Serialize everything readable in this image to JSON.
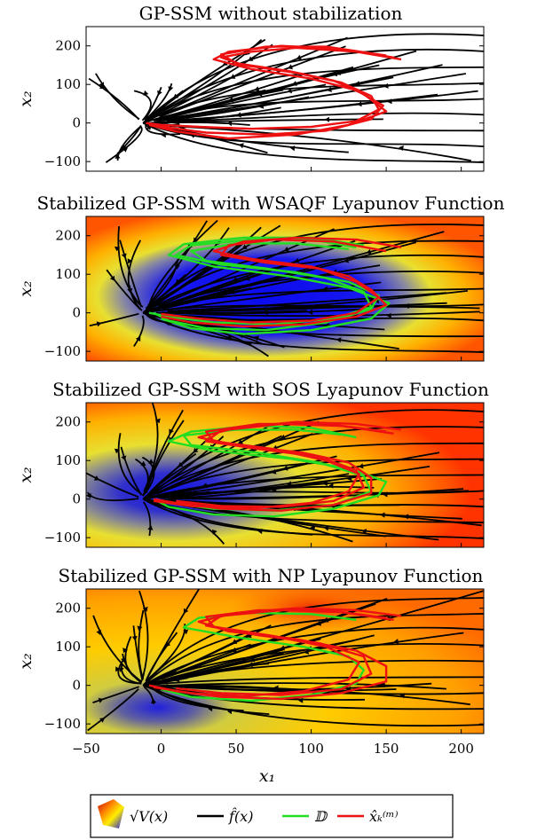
{
  "chart_data": [
    {
      "type": "line",
      "title": "GP-SSM without stabilization",
      "xlabel": "",
      "ylabel": "x₂",
      "xlim": [
        -50,
        215
      ],
      "ylim": [
        -125,
        250
      ],
      "yticks": [
        "200",
        "100",
        "0",
        "−100"
      ],
      "xticks": [],
      "background": "none",
      "show_D": false,
      "series": [
        {
          "name": "red",
          "points": [
            [
              160,
              165
            ],
            [
              130,
              185
            ],
            [
              90,
              195
            ],
            [
              60,
              185
            ],
            [
              40,
              170
            ],
            [
              55,
              150
            ],
            [
              90,
              130
            ],
            [
              120,
              105
            ],
            [
              140,
              70
            ],
            [
              145,
              35
            ],
            [
              130,
              5
            ],
            [
              100,
              -10
            ],
            [
              60,
              -15
            ],
            [
              25,
              -10
            ],
            [
              0,
              -5
            ],
            [
              -10,
              0
            ]
          ]
        },
        {
          "name": "red",
          "points": [
            [
              155,
              170
            ],
            [
              120,
              192
            ],
            [
              80,
              200
            ],
            [
              45,
              185
            ],
            [
              35,
              165
            ],
            [
              60,
              140
            ],
            [
              100,
              115
            ],
            [
              130,
              85
            ],
            [
              148,
              45
            ],
            [
              140,
              10
            ],
            [
              110,
              -20
            ],
            [
              70,
              -30
            ],
            [
              30,
              -25
            ],
            [
              5,
              -12
            ],
            [
              -10,
              0
            ]
          ]
        },
        {
          "name": "red",
          "points": [
            [
              150,
              175
            ],
            [
              110,
              198
            ],
            [
              70,
              198
            ],
            [
              40,
              178
            ],
            [
              50,
              155
            ],
            [
              85,
              135
            ],
            [
              115,
              110
            ],
            [
              135,
              75
            ],
            [
              150,
              30
            ],
            [
              125,
              -5
            ],
            [
              90,
              -30
            ],
            [
              45,
              -40
            ],
            [
              10,
              -22
            ],
            [
              -8,
              -5
            ]
          ]
        }
      ]
    },
    {
      "type": "line",
      "title": "Stabilized GP-SSM with WSAQF Lyapunov Function",
      "xlabel": "",
      "ylabel": "x₂",
      "xlim": [
        -50,
        215
      ],
      "ylim": [
        -125,
        250
      ],
      "yticks": [
        "200",
        "100",
        "0",
        "−100"
      ],
      "xticks": [],
      "background": "wsaqf",
      "show_D": true,
      "series": [
        {
          "name": "green",
          "points": [
            [
              130,
              170
            ],
            [
              100,
              190
            ],
            [
              60,
              190
            ],
            [
              20,
              175
            ],
            [
              10,
              150
            ],
            [
              40,
              125
            ],
            [
              90,
              105
            ],
            [
              125,
              80
            ],
            [
              145,
              45
            ],
            [
              140,
              10
            ],
            [
              110,
              -25
            ],
            [
              70,
              -45
            ],
            [
              30,
              -40
            ],
            [
              5,
              -20
            ],
            [
              -5,
              0
            ]
          ]
        },
        {
          "name": "green",
          "points": [
            [
              125,
              165
            ],
            [
              90,
              180
            ],
            [
              50,
              180
            ],
            [
              20,
              160
            ],
            [
              30,
              135
            ],
            [
              70,
              115
            ],
            [
              110,
              90
            ],
            [
              135,
              55
            ],
            [
              140,
              15
            ],
            [
              115,
              -15
            ],
            [
              75,
              -30
            ],
            [
              35,
              -25
            ],
            [
              5,
              -10
            ],
            [
              -8,
              0
            ]
          ]
        },
        {
          "name": "green",
          "points": [
            [
              135,
              175
            ],
            [
              100,
              195
            ],
            [
              55,
              195
            ],
            [
              15,
              178
            ],
            [
              5,
              150
            ],
            [
              35,
              120
            ],
            [
              85,
              95
            ],
            [
              125,
              65
            ],
            [
              152,
              25
            ],
            [
              140,
              -15
            ],
            [
              100,
              -45
            ],
            [
              55,
              -55
            ],
            [
              20,
              -40
            ],
            [
              0,
              -15
            ]
          ]
        },
        {
          "name": "red",
          "points": [
            [
              160,
              170
            ],
            [
              130,
              190
            ],
            [
              90,
              195
            ],
            [
              55,
              185
            ],
            [
              35,
              160
            ],
            [
              60,
              140
            ],
            [
              100,
              120
            ],
            [
              125,
              95
            ],
            [
              140,
              60
            ],
            [
              150,
              20
            ],
            [
              130,
              -10
            ],
            [
              95,
              -30
            ],
            [
              55,
              -35
            ],
            [
              20,
              -25
            ],
            [
              0,
              -10
            ]
          ]
        },
        {
          "name": "red",
          "points": [
            [
              150,
              160
            ],
            [
              115,
              185
            ],
            [
              75,
              190
            ],
            [
              45,
              175
            ],
            [
              40,
              150
            ],
            [
              70,
              130
            ],
            [
              105,
              115
            ],
            [
              130,
              80
            ],
            [
              145,
              40
            ],
            [
              130,
              0
            ],
            [
              100,
              -20
            ],
            [
              60,
              -25
            ],
            [
              25,
              -15
            ],
            [
              0,
              -3
            ]
          ]
        }
      ]
    },
    {
      "type": "line",
      "title": "Stabilized GP-SSM with SOS Lyapunov Function",
      "xlabel": "",
      "ylabel": "x₂",
      "xlim": [
        -50,
        215
      ],
      "ylim": [
        -125,
        250
      ],
      "yticks": [
        "200",
        "100",
        "0",
        "−100"
      ],
      "xticks": [],
      "background": "sos",
      "show_D": true,
      "series": [
        {
          "name": "green",
          "points": [
            [
              130,
              160
            ],
            [
              100,
              185
            ],
            [
              60,
              190
            ],
            [
              20,
              175
            ],
            [
              5,
              150
            ],
            [
              35,
              125
            ],
            [
              85,
              105
            ],
            [
              125,
              80
            ],
            [
              150,
              45
            ],
            [
              145,
              10
            ],
            [
              115,
              -25
            ],
            [
              75,
              -45
            ],
            [
              35,
              -40
            ],
            [
              5,
              -20
            ],
            [
              -5,
              0
            ]
          ]
        },
        {
          "name": "green",
          "points": [
            [
              125,
              165
            ],
            [
              90,
              180
            ],
            [
              50,
              180
            ],
            [
              15,
              165
            ],
            [
              20,
              140
            ],
            [
              65,
              120
            ],
            [
              105,
              95
            ],
            [
              135,
              60
            ],
            [
              140,
              20
            ],
            [
              115,
              -15
            ],
            [
              75,
              -30
            ],
            [
              35,
              -25
            ],
            [
              5,
              -10
            ]
          ]
        },
        {
          "name": "red",
          "points": [
            [
              160,
              180
            ],
            [
              130,
              195
            ],
            [
              90,
              200
            ],
            [
              50,
              185
            ],
            [
              25,
              160
            ],
            [
              50,
              140
            ],
            [
              95,
              120
            ],
            [
              125,
              95
            ],
            [
              140,
              55
            ],
            [
              140,
              15
            ],
            [
              115,
              -15
            ],
            [
              80,
              -30
            ],
            [
              40,
              -25
            ],
            [
              10,
              -10
            ],
            [
              -5,
              0
            ]
          ]
        },
        {
          "name": "red",
          "points": [
            [
              155,
              170
            ],
            [
              120,
              190
            ],
            [
              80,
              195
            ],
            [
              40,
              178
            ],
            [
              30,
              150
            ],
            [
              65,
              130
            ],
            [
              105,
              110
            ],
            [
              130,
              75
            ],
            [
              135,
              30
            ],
            [
              115,
              -5
            ],
            [
              80,
              -20
            ],
            [
              40,
              -18
            ],
            [
              10,
              -5
            ]
          ]
        },
        {
          "name": "red",
          "points": [
            [
              150,
              175
            ],
            [
              110,
              195
            ],
            [
              65,
              195
            ],
            [
              30,
              175
            ],
            [
              35,
              150
            ],
            [
              75,
              130
            ],
            [
              110,
              100
            ],
            [
              132,
              65
            ],
            [
              125,
              20
            ],
            [
              100,
              -10
            ],
            [
              60,
              -25
            ],
            [
              20,
              -18
            ],
            [
              -5,
              -5
            ]
          ]
        }
      ]
    },
    {
      "type": "line",
      "title": "Stabilized GP-SSM with NP Lyapunov Function",
      "xlabel": "x₁",
      "ylabel": "x₂",
      "xlim": [
        -50,
        215
      ],
      "ylim": [
        -125,
        250
      ],
      "yticks": [
        "200",
        "100",
        "0",
        "−100"
      ],
      "xticks": [
        "−50",
        "0",
        "50",
        "100",
        "150",
        "200"
      ],
      "background": "np",
      "show_D": true,
      "series": [
        {
          "name": "green",
          "points": [
            [
              130,
              170
            ],
            [
              100,
              185
            ],
            [
              60,
              188
            ],
            [
              25,
              175
            ],
            [
              15,
              150
            ],
            [
              50,
              125
            ],
            [
              95,
              100
            ],
            [
              125,
              75
            ],
            [
              135,
              40
            ],
            [
              130,
              5
            ],
            [
              100,
              -25
            ],
            [
              60,
              -40
            ],
            [
              20,
              -30
            ],
            [
              0,
              -10
            ]
          ]
        },
        {
          "name": "red",
          "points": [
            [
              160,
              180
            ],
            [
              130,
              195
            ],
            [
              90,
              200
            ],
            [
              50,
              188
            ],
            [
              25,
              165
            ],
            [
              45,
              140
            ],
            [
              90,
              120
            ],
            [
              130,
              90
            ],
            [
              150,
              50
            ],
            [
              150,
              10
            ],
            [
              120,
              -20
            ],
            [
              80,
              -35
            ],
            [
              40,
              -30
            ],
            [
              10,
              -15
            ],
            [
              -8,
              0
            ]
          ]
        },
        {
          "name": "red",
          "points": [
            [
              155,
              170
            ],
            [
              120,
              190
            ],
            [
              80,
              195
            ],
            [
              40,
              180
            ],
            [
              30,
              155
            ],
            [
              65,
              130
            ],
            [
              105,
              110
            ],
            [
              135,
              75
            ],
            [
              140,
              30
            ],
            [
              120,
              -10
            ],
            [
              80,
              -25
            ],
            [
              40,
              -20
            ],
            [
              10,
              -8
            ]
          ]
        },
        {
          "name": "red",
          "points": [
            [
              150,
              175
            ],
            [
              110,
              195
            ],
            [
              65,
              195
            ],
            [
              30,
              178
            ],
            [
              35,
              152
            ],
            [
              75,
              128
            ],
            [
              110,
              100
            ],
            [
              132,
              60
            ],
            [
              125,
              15
            ],
            [
              95,
              -15
            ],
            [
              55,
              -28
            ],
            [
              20,
              -20
            ],
            [
              -5,
              -5
            ]
          ]
        }
      ]
    }
  ],
  "legend": {
    "v_label": "√V(x)",
    "f_label": "f̂(x)",
    "d_label": "𝔻",
    "x_label": "x̂ₖ⁽ᵐ⁾",
    "colors": {
      "f": "#000000",
      "d": "#22dd22",
      "x": "#ee1111"
    },
    "colorbar": [
      "#cc0000",
      "#ff8800",
      "#ffee00",
      "#1111ee"
    ]
  },
  "colors": {
    "flow": "#000000",
    "d": "#22dd22",
    "x": "#ee1111",
    "frame": "#000000"
  }
}
